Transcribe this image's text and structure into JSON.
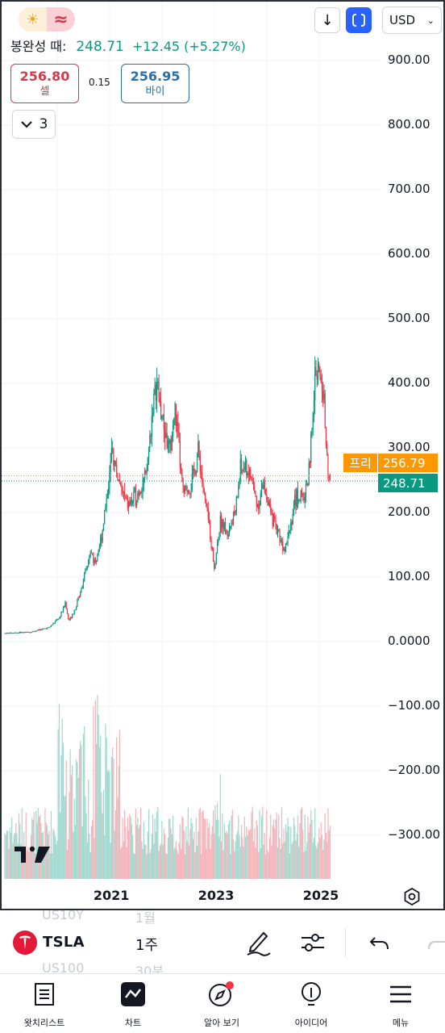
{
  "header": {
    "quote_label": "봉완성 때:",
    "quote_price": "248.71",
    "quote_change": "+12.45 (+5.27%)",
    "currency": "USD",
    "sell_price": "256.80",
    "sell_label": "셀",
    "spread": "0.15",
    "buy_price": "256.95",
    "buy_label": "바이",
    "indicators_count": "3"
  },
  "icons": {
    "weather": "sun-icon",
    "wave": "approx-wave-icon",
    "download": "download-arrow-icon",
    "fullscreen": "fullscreen-icon",
    "logo": "tradingview-logo",
    "settings": "gear-icon"
  },
  "price_tags": {
    "pre_label": "프리",
    "pre_value": "256.79",
    "close_value": "248.71"
  },
  "colors": {
    "up": "#089981",
    "down": "#f23645",
    "pre_market": "#ff9800",
    "accent": "#2962ff"
  },
  "chart_data": {
    "type": "candlestick",
    "symbol": "TSLA",
    "interval": "1주",
    "y_ticks": [
      "900.00",
      "800.00",
      "700.00",
      "600.00",
      "500.00",
      "400.00",
      "300.00",
      "200.00",
      "100.00",
      "0.0000",
      "−100.00",
      "−200.00",
      "−300.00"
    ],
    "x_ticks": [
      "2021",
      "2023",
      "2025"
    ],
    "ylim": [
      -365,
      990
    ],
    "grid": true,
    "last_price": 248.71,
    "pre_market_price": 256.79,
    "close_series": [
      {
        "x": 2019.0,
        "y": 13
      },
      {
        "x": 2019.5,
        "y": 15
      },
      {
        "x": 2019.85,
        "y": 22
      },
      {
        "x": 2020.05,
        "y": 38
      },
      {
        "x": 2020.15,
        "y": 60
      },
      {
        "x": 2020.22,
        "y": 32
      },
      {
        "x": 2020.35,
        "y": 52
      },
      {
        "x": 2020.5,
        "y": 95
      },
      {
        "x": 2020.65,
        "y": 140
      },
      {
        "x": 2020.72,
        "y": 120
      },
      {
        "x": 2020.85,
        "y": 165
      },
      {
        "x": 2020.95,
        "y": 230
      },
      {
        "x": 2021.05,
        "y": 290
      },
      {
        "x": 2021.2,
        "y": 240
      },
      {
        "x": 2021.35,
        "y": 210
      },
      {
        "x": 2021.5,
        "y": 225
      },
      {
        "x": 2021.7,
        "y": 255
      },
      {
        "x": 2021.82,
        "y": 360
      },
      {
        "x": 2021.9,
        "y": 400
      },
      {
        "x": 2022.0,
        "y": 350
      },
      {
        "x": 2022.15,
        "y": 290
      },
      {
        "x": 2022.25,
        "y": 360
      },
      {
        "x": 2022.4,
        "y": 230
      },
      {
        "x": 2022.55,
        "y": 240
      },
      {
        "x": 2022.7,
        "y": 295
      },
      {
        "x": 2022.8,
        "y": 230
      },
      {
        "x": 2022.9,
        "y": 180
      },
      {
        "x": 2023.0,
        "y": 115
      },
      {
        "x": 2023.12,
        "y": 190
      },
      {
        "x": 2023.25,
        "y": 170
      },
      {
        "x": 2023.4,
        "y": 200
      },
      {
        "x": 2023.5,
        "y": 265
      },
      {
        "x": 2023.6,
        "y": 270
      },
      {
        "x": 2023.72,
        "y": 250
      },
      {
        "x": 2023.82,
        "y": 210
      },
      {
        "x": 2023.95,
        "y": 245
      },
      {
        "x": 2024.1,
        "y": 190
      },
      {
        "x": 2024.25,
        "y": 165
      },
      {
        "x": 2024.32,
        "y": 145
      },
      {
        "x": 2024.45,
        "y": 180
      },
      {
        "x": 2024.58,
        "y": 230
      },
      {
        "x": 2024.7,
        "y": 220
      },
      {
        "x": 2024.8,
        "y": 260
      },
      {
        "x": 2024.88,
        "y": 340
      },
      {
        "x": 2024.95,
        "y": 440
      },
      {
        "x": 2025.0,
        "y": 410
      },
      {
        "x": 2025.06,
        "y": 400
      },
      {
        "x": 2025.12,
        "y": 340
      },
      {
        "x": 2025.18,
        "y": 262
      },
      {
        "x": 2025.22,
        "y": 248.71
      }
    ],
    "volume_label": "volume"
  },
  "symbol_bar": {
    "ghost_above_symbol": "US10Y",
    "ghost_above_interval": "1월",
    "symbol": "TSLA",
    "interval": "1주",
    "ghost_below_symbol": "US100",
    "ghost_below_interval": "30분"
  },
  "bottom_nav": [
    {
      "label": "왓치리스트",
      "icon": "watchlist-icon"
    },
    {
      "label": "차트",
      "icon": "chart-icon"
    },
    {
      "label": "알아 보기",
      "icon": "compass-icon"
    },
    {
      "label": "아이디어",
      "icon": "lightbulb-icon"
    },
    {
      "label": "메뉴",
      "icon": "menu-icon"
    }
  ]
}
